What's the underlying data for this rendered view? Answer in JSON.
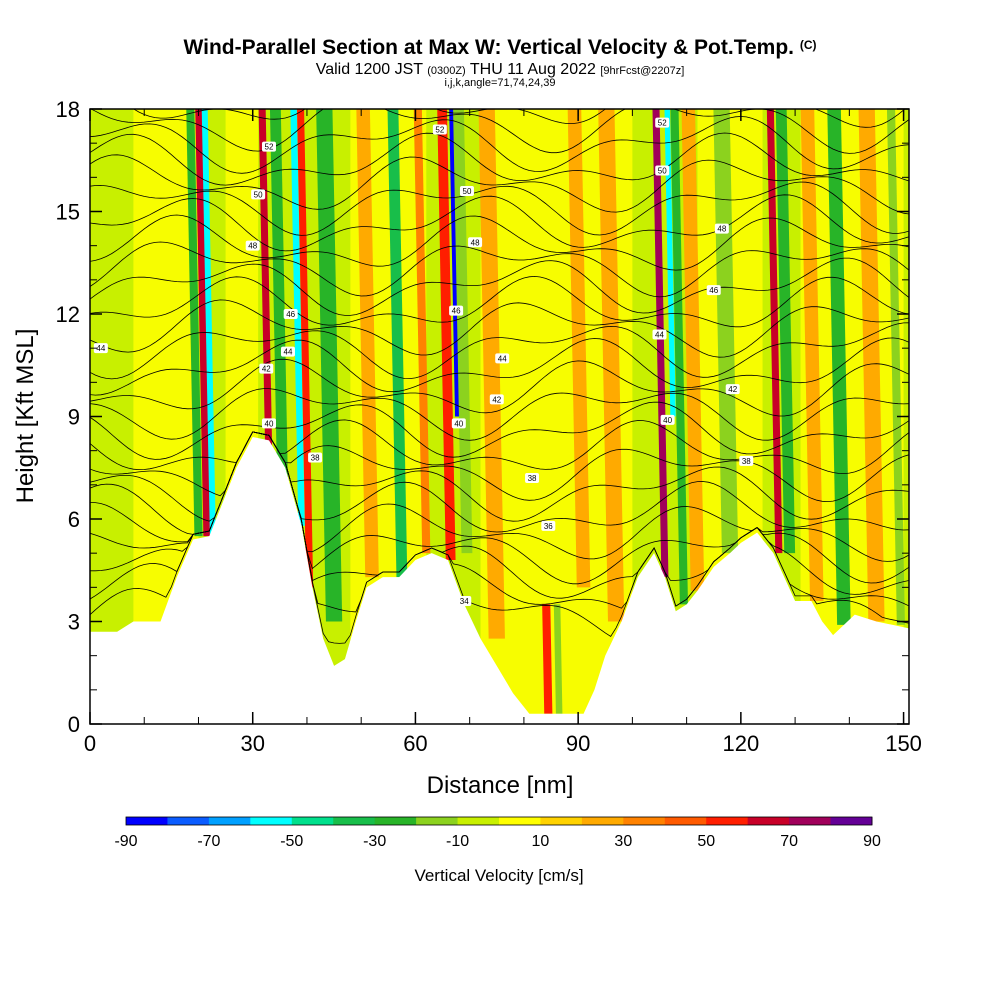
{
  "title": {
    "main": "Wind-Parallel Section at Max W: Vertical Velocity & Pot.Temp.",
    "copyright": "(C)",
    "valid_prefix": "Valid 1200 JST",
    "valid_utc": "(0300Z)",
    "valid_date": "THU 11 Aug 2022",
    "forecast": "[9hrFcst@2207z]",
    "indices": "i,j,k,angle=71,74,24,39"
  },
  "chart_data": {
    "type": "heatmap",
    "xlabel": "Distance [nm]",
    "ylabel": "Height [Kft MSL]",
    "xlim": [
      0,
      151
    ],
    "ylim": [
      0,
      18
    ],
    "x_ticks": [
      0,
      30,
      60,
      90,
      120,
      150
    ],
    "y_ticks": [
      0,
      3,
      6,
      9,
      12,
      15,
      18
    ],
    "colorbar": {
      "label": "Vertical Velocity [cm/s]",
      "ticks": [
        -90,
        -70,
        -50,
        -30,
        -10,
        10,
        30,
        50,
        70,
        90
      ],
      "bins": [
        {
          "from": -90,
          "to": -80,
          "color": "#0000ff"
        },
        {
          "from": -80,
          "to": -70,
          "color": "#0a5cff"
        },
        {
          "from": -70,
          "to": -60,
          "color": "#00a0ff"
        },
        {
          "from": -60,
          "to": -50,
          "color": "#00ffff"
        },
        {
          "from": -50,
          "to": -40,
          "color": "#00e08c"
        },
        {
          "from": -40,
          "to": -30,
          "color": "#18be4a"
        },
        {
          "from": -30,
          "to": -20,
          "color": "#28b428"
        },
        {
          "from": -20,
          "to": -10,
          "color": "#8cd21e"
        },
        {
          "from": -10,
          "to": 0,
          "color": "#c8f000"
        },
        {
          "from": 0,
          "to": 10,
          "color": "#ffff00"
        },
        {
          "from": 10,
          "to": 20,
          "color": "#ffd200"
        },
        {
          "from": 20,
          "to": 30,
          "color": "#ffaa00"
        },
        {
          "from": 30,
          "to": 40,
          "color": "#ff8200"
        },
        {
          "from": 40,
          "to": 50,
          "color": "#ff5a00"
        },
        {
          "from": 50,
          "to": 60,
          "color": "#ff1e00"
        },
        {
          "from": 60,
          "to": 70,
          "color": "#c80028"
        },
        {
          "from": 70,
          "to": 80,
          "color": "#a0005a"
        },
        {
          "from": 80,
          "to": 90,
          "color": "#640096"
        }
      ]
    },
    "terrain": [
      {
        "x": 0,
        "y": 2.7
      },
      {
        "x": 5,
        "y": 2.7
      },
      {
        "x": 8,
        "y": 3.0
      },
      {
        "x": 13,
        "y": 3.0
      },
      {
        "x": 16,
        "y": 4.3
      },
      {
        "x": 19,
        "y": 5.4
      },
      {
        "x": 22,
        "y": 5.5
      },
      {
        "x": 24,
        "y": 6.3
      },
      {
        "x": 27,
        "y": 7.5
      },
      {
        "x": 30,
        "y": 8.4
      },
      {
        "x": 33,
        "y": 8.3
      },
      {
        "x": 36,
        "y": 7.5
      },
      {
        "x": 39,
        "y": 5.8
      },
      {
        "x": 41,
        "y": 4.0
      },
      {
        "x": 43,
        "y": 2.5
      },
      {
        "x": 45,
        "y": 1.7
      },
      {
        "x": 47,
        "y": 1.9
      },
      {
        "x": 49,
        "y": 3.0
      },
      {
        "x": 51,
        "y": 4.0
      },
      {
        "x": 54,
        "y": 4.3
      },
      {
        "x": 57,
        "y": 4.3
      },
      {
        "x": 60,
        "y": 4.8
      },
      {
        "x": 63,
        "y": 5.0
      },
      {
        "x": 66,
        "y": 4.8
      },
      {
        "x": 69,
        "y": 3.5
      },
      {
        "x": 72,
        "y": 2.5
      },
      {
        "x": 75,
        "y": 1.7
      },
      {
        "x": 78,
        "y": 0.9
      },
      {
        "x": 81,
        "y": 0.3
      },
      {
        "x": 86,
        "y": 0.3
      },
      {
        "x": 91,
        "y": 0.3
      },
      {
        "x": 93,
        "y": 1.0
      },
      {
        "x": 95,
        "y": 2.0
      },
      {
        "x": 98,
        "y": 3.0
      },
      {
        "x": 101,
        "y": 4.3
      },
      {
        "x": 104,
        "y": 5.0
      },
      {
        "x": 106,
        "y": 4.3
      },
      {
        "x": 108,
        "y": 3.3
      },
      {
        "x": 110,
        "y": 3.5
      },
      {
        "x": 112,
        "y": 3.9
      },
      {
        "x": 115,
        "y": 4.6
      },
      {
        "x": 118,
        "y": 5.0
      },
      {
        "x": 120,
        "y": 5.3
      },
      {
        "x": 123,
        "y": 5.6
      },
      {
        "x": 126,
        "y": 5.0
      },
      {
        "x": 128,
        "y": 4.3
      },
      {
        "x": 130,
        "y": 3.6
      },
      {
        "x": 133,
        "y": 3.6
      },
      {
        "x": 135,
        "y": 3.0
      },
      {
        "x": 137,
        "y": 2.6
      },
      {
        "x": 139,
        "y": 2.9
      },
      {
        "x": 141,
        "y": 3.2
      },
      {
        "x": 145,
        "y": 3.0
      },
      {
        "x": 148,
        "y": 2.9
      },
      {
        "x": 151,
        "y": 2.8
      }
    ],
    "velocity_bands": [
      {
        "x": 22.5,
        "w": 1.4,
        "y0": 5.5,
        "y1": 18,
        "value": -55
      },
      {
        "x": 21.5,
        "w": 1.2,
        "y0": 5.5,
        "y1": 18,
        "value": 65
      },
      {
        "x": 20.0,
        "w": 1.5,
        "y0": 5.5,
        "y1": 18,
        "value": -25
      },
      {
        "x": 33.0,
        "w": 1.3,
        "y0": 7.5,
        "y1": 18,
        "value": 65
      },
      {
        "x": 35.5,
        "w": 2.0,
        "y0": 7.0,
        "y1": 18,
        "value": -30
      },
      {
        "x": 39.0,
        "w": 1.2,
        "y0": 5.8,
        "y1": 18,
        "value": -55
      },
      {
        "x": 40.5,
        "w": 1.3,
        "y0": 4.0,
        "y1": 18,
        "value": 55
      },
      {
        "x": 45.0,
        "w": 3.0,
        "y0": 3.0,
        "y1": 18,
        "value": -25
      },
      {
        "x": 52.0,
        "w": 2.5,
        "y0": 4.3,
        "y1": 18,
        "value": 25
      },
      {
        "x": 57.5,
        "w": 2.0,
        "y0": 4.3,
        "y1": 18,
        "value": -35
      },
      {
        "x": 62.0,
        "w": 1.5,
        "y0": 5.0,
        "y1": 18,
        "value": 30
      },
      {
        "x": 66.5,
        "w": 1.8,
        "y0": 4.8,
        "y1": 18,
        "value": 55
      },
      {
        "x": 68.0,
        "w": 1.4,
        "y0": 9.0,
        "y1": 18,
        "value": -85
      },
      {
        "x": 69.5,
        "w": 2.0,
        "y0": 5.0,
        "y1": 18,
        "value": -20
      },
      {
        "x": 75.0,
        "w": 3.0,
        "y0": 2.5,
        "y1": 18,
        "value": 25
      },
      {
        "x": 84.5,
        "w": 1.5,
        "y0": 0.3,
        "y1": 3.5,
        "value": 55
      },
      {
        "x": 86.5,
        "w": 1.2,
        "y0": 0.3,
        "y1": 3.5,
        "value": -20
      },
      {
        "x": 91.0,
        "w": 2.5,
        "y0": 4.0,
        "y1": 18,
        "value": 25
      },
      {
        "x": 97.0,
        "w": 3.0,
        "y0": 3.0,
        "y1": 18,
        "value": 25
      },
      {
        "x": 106.0,
        "w": 1.3,
        "y0": 4.3,
        "y1": 18,
        "value": 70
      },
      {
        "x": 107.5,
        "w": 1.0,
        "y0": 9.0,
        "y1": 18,
        "value": -55
      },
      {
        "x": 109.5,
        "w": 1.5,
        "y0": 3.5,
        "y1": 18,
        "value": -25
      },
      {
        "x": 112.0,
        "w": 2.5,
        "y0": 3.9,
        "y1": 18,
        "value": 25
      },
      {
        "x": 118.0,
        "w": 3.0,
        "y0": 5.0,
        "y1": 18,
        "value": -15
      },
      {
        "x": 127.0,
        "w": 1.3,
        "y0": 5.0,
        "y1": 18,
        "value": 65
      },
      {
        "x": 129.0,
        "w": 2.0,
        "y0": 5.0,
        "y1": 18,
        "value": -30
      },
      {
        "x": 134.0,
        "w": 2.5,
        "y0": 3.6,
        "y1": 18,
        "value": 25
      },
      {
        "x": 139.0,
        "w": 2.5,
        "y0": 2.9,
        "y1": 18,
        "value": -25
      },
      {
        "x": 145.0,
        "w": 3.0,
        "y0": 3.0,
        "y1": 18,
        "value": 25
      },
      {
        "x": 149.5,
        "w": 1.5,
        "y0": 2.9,
        "y1": 18,
        "value": -15
      }
    ],
    "theta_contour_labels": [
      {
        "text": "44",
        "x": 2.0,
        "y": 11.0
      },
      {
        "text": "52",
        "x": 33.0,
        "y": 16.9
      },
      {
        "text": "50",
        "x": 31.0,
        "y": 15.5
      },
      {
        "text": "48",
        "x": 30.0,
        "y": 14.0
      },
      {
        "text": "46",
        "x": 37.0,
        "y": 12.0
      },
      {
        "text": "44",
        "x": 36.5,
        "y": 10.9
      },
      {
        "text": "42",
        "x": 32.5,
        "y": 10.4
      },
      {
        "text": "40",
        "x": 33.0,
        "y": 8.8
      },
      {
        "text": "38",
        "x": 41.5,
        "y": 7.8
      },
      {
        "text": "52",
        "x": 64.5,
        "y": 17.4
      },
      {
        "text": "50",
        "x": 69.5,
        "y": 15.6
      },
      {
        "text": "48",
        "x": 71.0,
        "y": 14.1
      },
      {
        "text": "46",
        "x": 67.5,
        "y": 12.1
      },
      {
        "text": "44",
        "x": 76.0,
        "y": 10.7
      },
      {
        "text": "42",
        "x": 75.0,
        "y": 9.5
      },
      {
        "text": "40",
        "x": 68.0,
        "y": 8.8
      },
      {
        "text": "38",
        "x": 81.5,
        "y": 7.2
      },
      {
        "text": "36",
        "x": 84.5,
        "y": 5.8
      },
      {
        "text": "34",
        "x": 69.0,
        "y": 3.6
      },
      {
        "text": "52",
        "x": 105.5,
        "y": 17.6
      },
      {
        "text": "50",
        "x": 105.5,
        "y": 16.2
      },
      {
        "text": "48",
        "x": 116.5,
        "y": 14.5
      },
      {
        "text": "46",
        "x": 115.0,
        "y": 12.7
      },
      {
        "text": "44",
        "x": 105.0,
        "y": 11.4
      },
      {
        "text": "42",
        "x": 118.5,
        "y": 9.8
      },
      {
        "text": "40",
        "x": 106.5,
        "y": 8.9
      },
      {
        "text": "38",
        "x": 121.0,
        "y": 7.7
      }
    ]
  }
}
